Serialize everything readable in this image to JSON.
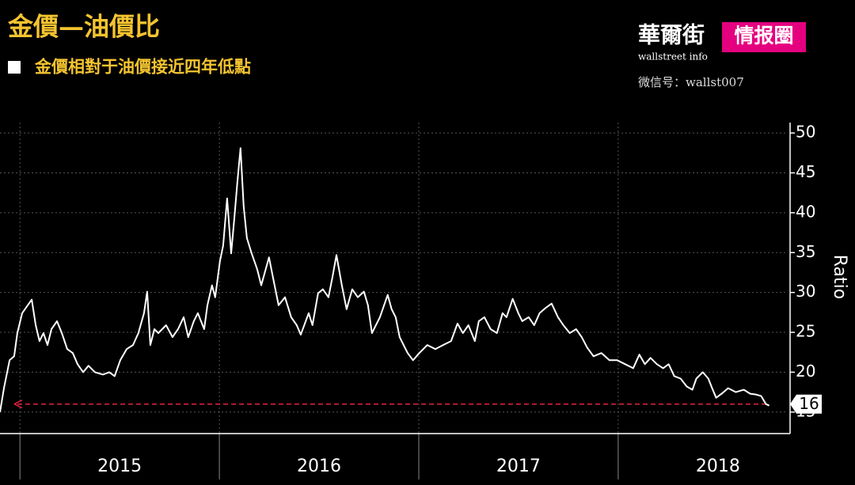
{
  "chart_data": {
    "type": "line",
    "title": "金價—油價比",
    "subtitle": "金價相對于油價接近四年低點",
    "ylabel": "Ratio",
    "color": "#ffffff",
    "reference_line": 16,
    "reference_color": "#e0233a",
    "xlim": [
      2014.9,
      2018.85
    ],
    "ylim": [
      12.3,
      51.3
    ],
    "yticks": [
      15,
      20,
      25,
      30,
      35,
      40,
      45,
      50
    ],
    "xticks": [
      2015,
      2016,
      2017,
      2018
    ],
    "xtick_labels": [
      {
        "value": 2015.5,
        "label": "2015"
      },
      {
        "value": 2016.5,
        "label": "2016"
      },
      {
        "value": 2017.5,
        "label": "2017"
      },
      {
        "value": 2018.5,
        "label": "2018"
      }
    ],
    "grid": true,
    "x": [
      2014.9,
      2014.92,
      2014.948,
      2014.971,
      2014.987,
      2015.011,
      2015.039,
      2015.059,
      2015.079,
      2015.098,
      2015.118,
      2015.138,
      2015.158,
      2015.186,
      2015.21,
      2015.237,
      2015.265,
      2015.289,
      2015.317,
      2015.344,
      2015.376,
      2015.416,
      2015.448,
      2015.475,
      2015.503,
      2015.535,
      2015.567,
      2015.594,
      2015.622,
      2015.638,
      2015.654,
      2015.674,
      2015.694,
      2015.733,
      2015.765,
      2015.793,
      2015.821,
      2015.844,
      2015.872,
      2015.892,
      2015.924,
      2015.94,
      2015.963,
      2015.979,
      2016.003,
      2016.019,
      2016.039,
      2016.059,
      2016.075,
      2016.09,
      2016.106,
      2016.122,
      2016.138,
      2016.162,
      2016.19,
      2016.21,
      2016.249,
      2016.269,
      2016.297,
      2016.329,
      2016.36,
      2016.388,
      2016.408,
      2016.448,
      2016.467,
      2016.495,
      2016.519,
      2016.547,
      2016.567,
      2016.587,
      2016.614,
      2016.638,
      2016.666,
      2016.694,
      2016.725,
      2016.745,
      2016.765,
      2016.805,
      2016.844,
      2016.864,
      2016.884,
      2016.904,
      2016.944,
      2016.971,
      2017.003,
      2017.043,
      2017.083,
      2017.122,
      2017.162,
      2017.194,
      2017.221,
      2017.249,
      2017.281,
      2017.301,
      2017.329,
      2017.36,
      2017.392,
      2017.42,
      2017.44,
      2017.471,
      2017.499,
      2017.519,
      2017.551,
      2017.579,
      2017.606,
      2017.638,
      2017.666,
      2017.698,
      2017.725,
      2017.757,
      2017.789,
      2017.817,
      2017.844,
      2017.876,
      2017.916,
      2017.956,
      2017.995,
      2018.035,
      2018.075,
      2018.106,
      2018.134,
      2018.162,
      2018.194,
      2018.225,
      2018.253,
      2018.281,
      2018.313,
      2018.344,
      2018.372,
      2018.392,
      2018.424,
      2018.452,
      2018.471,
      2018.491,
      2018.519,
      2018.551,
      2018.59,
      2018.63,
      2018.662,
      2018.69,
      2018.717,
      2018.741,
      2018.757
    ],
    "values": [
      15.0,
      18.0,
      21.5,
      22.0,
      24.9,
      27.4,
      28.4,
      29.1,
      25.9,
      23.9,
      24.9,
      23.4,
      25.4,
      26.4,
      24.9,
      22.9,
      22.4,
      21.0,
      20.0,
      20.8,
      20.0,
      19.7,
      20.0,
      19.5,
      21.5,
      22.9,
      23.4,
      24.9,
      27.4,
      30.1,
      23.4,
      25.4,
      24.9,
      25.9,
      24.4,
      25.4,
      26.9,
      24.4,
      26.4,
      27.4,
      25.4,
      28.4,
      30.9,
      29.4,
      33.9,
      35.9,
      41.8,
      34.9,
      39.3,
      43.8,
      48.1,
      40.8,
      36.8,
      34.9,
      32.9,
      30.9,
      34.4,
      31.9,
      28.4,
      29.4,
      26.9,
      25.9,
      24.7,
      27.4,
      25.9,
      29.9,
      30.4,
      29.4,
      31.9,
      34.7,
      30.9,
      27.9,
      30.4,
      29.4,
      30.1,
      28.4,
      24.9,
      26.9,
      29.7,
      27.9,
      26.9,
      24.4,
      22.4,
      21.5,
      22.4,
      23.4,
      22.9,
      23.4,
      23.9,
      26.1,
      24.9,
      25.9,
      23.9,
      26.4,
      26.9,
      25.4,
      24.9,
      27.4,
      26.9,
      29.2,
      27.4,
      26.4,
      26.9,
      25.9,
      27.4,
      28.1,
      28.6,
      26.9,
      25.9,
      24.9,
      25.4,
      24.4,
      23.1,
      22.0,
      22.4,
      21.5,
      21.5,
      21.0,
      20.5,
      22.2,
      21.0,
      21.8,
      21.0,
      20.5,
      21.0,
      19.5,
      19.2,
      18.2,
      17.8,
      19.2,
      20.0,
      19.2,
      18.0,
      16.8,
      17.3,
      18.0,
      17.5,
      17.8,
      17.3,
      17.2,
      17.0,
      16.0,
      15.8
    ]
  },
  "branding": {
    "name": "華爾街",
    "tag": "情报圈",
    "site": "wallstreet info",
    "wechat": "微信号：wallst007"
  }
}
